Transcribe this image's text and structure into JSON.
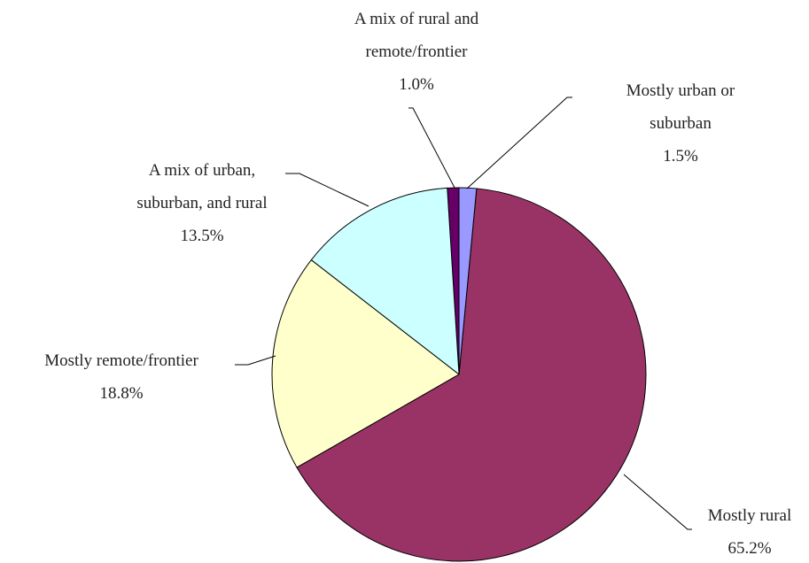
{
  "chart_data": {
    "type": "pie",
    "categories": [
      "Mostly urban or\nsuburban",
      "Mostly rural",
      "Mostly remote/frontier",
      "A mix of urban,\nsuburban, and rural",
      "A mix of rural and\nremote/frontier"
    ],
    "values": [
      1.5,
      65.2,
      18.8,
      13.5,
      1.0
    ],
    "value_labels": [
      "1.5%",
      "65.2%",
      "18.8%",
      "13.5%",
      "1.0%"
    ],
    "colors": [
      "#9999ff",
      "#993366",
      "#ffffcc",
      "#ccffff",
      "#660066"
    ]
  }
}
